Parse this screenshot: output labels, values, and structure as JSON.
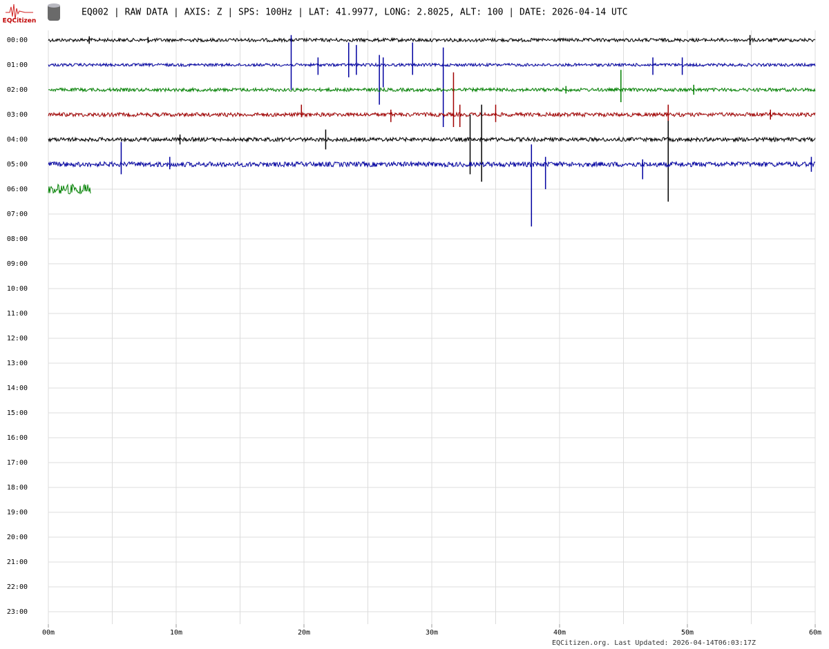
{
  "logo": "EQCitizen",
  "chart_data": {
    "type": "helicorder",
    "title": "EQ002 | RAW DATA | AXIS: Z | SPS: 100Hz | LAT: 41.9977, LONG: 2.8025, ALT: 100 | DATE: 2026-04-14 UTC",
    "footer": "EQCitizen.org. Last Updated: 2026-04-14T06:03:17Z",
    "categories": [
      "00:00",
      "01:00",
      "02:00",
      "03:00",
      "04:00",
      "05:00",
      "06:00",
      "07:00",
      "08:00",
      "09:00",
      "10:00",
      "11:00",
      "12:00",
      "13:00",
      "14:00",
      "15:00",
      "16:00",
      "17:00",
      "18:00",
      "19:00",
      "20:00",
      "21:00",
      "22:00",
      "23:00"
    ],
    "xlim": [
      0,
      60
    ],
    "xticks": [
      {
        "value": 0,
        "label": "00m"
      },
      {
        "value": 10,
        "label": "10m"
      },
      {
        "value": 20,
        "label": "20m"
      },
      {
        "value": 30,
        "label": "30m"
      },
      {
        "value": 40,
        "label": "40m"
      },
      {
        "value": 50,
        "label": "50m"
      },
      {
        "value": 60,
        "label": "60m"
      }
    ],
    "xgrid": [
      0,
      5,
      10,
      15,
      20,
      25,
      30,
      35,
      40,
      45,
      50,
      55,
      60
    ],
    "grid": true,
    "traces": [
      {
        "color": "#000000",
        "noise": 0.07,
        "end": 60,
        "spikes": [
          {
            "minute": 3.2,
            "up": 0.15,
            "down": 0.15
          },
          {
            "minute": 7.8,
            "up": 0.12,
            "down": 0.12
          },
          {
            "minute": 54.9,
            "up": 0.2,
            "down": 0.2
          }
        ]
      },
      {
        "color": "#0000a0",
        "noise": 0.06,
        "end": 60,
        "spikes": [
          {
            "minute": 19.0,
            "up": 1.2,
            "down": 1.0
          },
          {
            "minute": 21.1,
            "up": 0.3,
            "down": 0.4
          },
          {
            "minute": 23.5,
            "up": 0.9,
            "down": 0.5
          },
          {
            "minute": 24.1,
            "up": 0.8,
            "down": 0.4
          },
          {
            "minute": 25.9,
            "up": 0.4,
            "down": 1.6
          },
          {
            "minute": 26.2,
            "up": 0.3,
            "down": 0.9
          },
          {
            "minute": 28.5,
            "up": 0.9,
            "down": 0.4
          },
          {
            "minute": 30.9,
            "up": 0.7,
            "down": 2.5
          },
          {
            "minute": 47.3,
            "up": 0.3,
            "down": 0.4
          },
          {
            "minute": 49.6,
            "up": 0.3,
            "down": 0.4
          }
        ]
      },
      {
        "color": "#008000",
        "noise": 0.07,
        "end": 60,
        "spikes": [
          {
            "minute": 40.5,
            "up": 0.15,
            "down": 0.15
          },
          {
            "minute": 44.8,
            "up": 0.8,
            "down": 0.5
          },
          {
            "minute": 50.5,
            "up": 0.2,
            "down": 0.2
          }
        ]
      },
      {
        "color": "#a00000",
        "noise": 0.08,
        "end": 60,
        "spikes": [
          {
            "minute": 19.8,
            "up": 0.4,
            "down": 0.1
          },
          {
            "minute": 26.8,
            "up": 0.2,
            "down": 0.3
          },
          {
            "minute": 31.7,
            "up": 1.7,
            "down": 0.5
          },
          {
            "minute": 32.2,
            "up": 0.4,
            "down": 0.5
          },
          {
            "minute": 35.0,
            "up": 0.4,
            "down": 0.3
          },
          {
            "minute": 48.5,
            "up": 0.4,
            "down": 0.3
          },
          {
            "minute": 56.5,
            "up": 0.2,
            "down": 0.2
          }
        ]
      },
      {
        "color": "#000000",
        "noise": 0.08,
        "end": 60,
        "spikes": [
          {
            "minute": 10.3,
            "up": 0.2,
            "down": 0.2
          },
          {
            "minute": 21.7,
            "up": 0.4,
            "down": 0.4
          },
          {
            "minute": 33.0,
            "up": 1.0,
            "down": 1.4
          },
          {
            "minute": 33.9,
            "up": 1.4,
            "down": 1.7
          },
          {
            "minute": 48.5,
            "up": 0.75,
            "down": 2.5
          }
        ]
      },
      {
        "color": "#0000a0",
        "noise": 0.1,
        "end": 60,
        "spikes": [
          {
            "minute": 5.7,
            "up": 0.9,
            "down": 0.4
          },
          {
            "minute": 9.5,
            "up": 0.3,
            "down": 0.2
          },
          {
            "minute": 37.8,
            "up": 0.8,
            "down": 2.5
          },
          {
            "minute": 38.9,
            "up": 0.3,
            "down": 1.0
          },
          {
            "minute": 46.5,
            "up": 0.2,
            "down": 0.6
          },
          {
            "minute": 59.7,
            "up": 0.3,
            "down": 0.3
          }
        ]
      },
      {
        "color": "#008000",
        "noise": 0.2,
        "end": 3.3,
        "spikes": []
      }
    ]
  }
}
